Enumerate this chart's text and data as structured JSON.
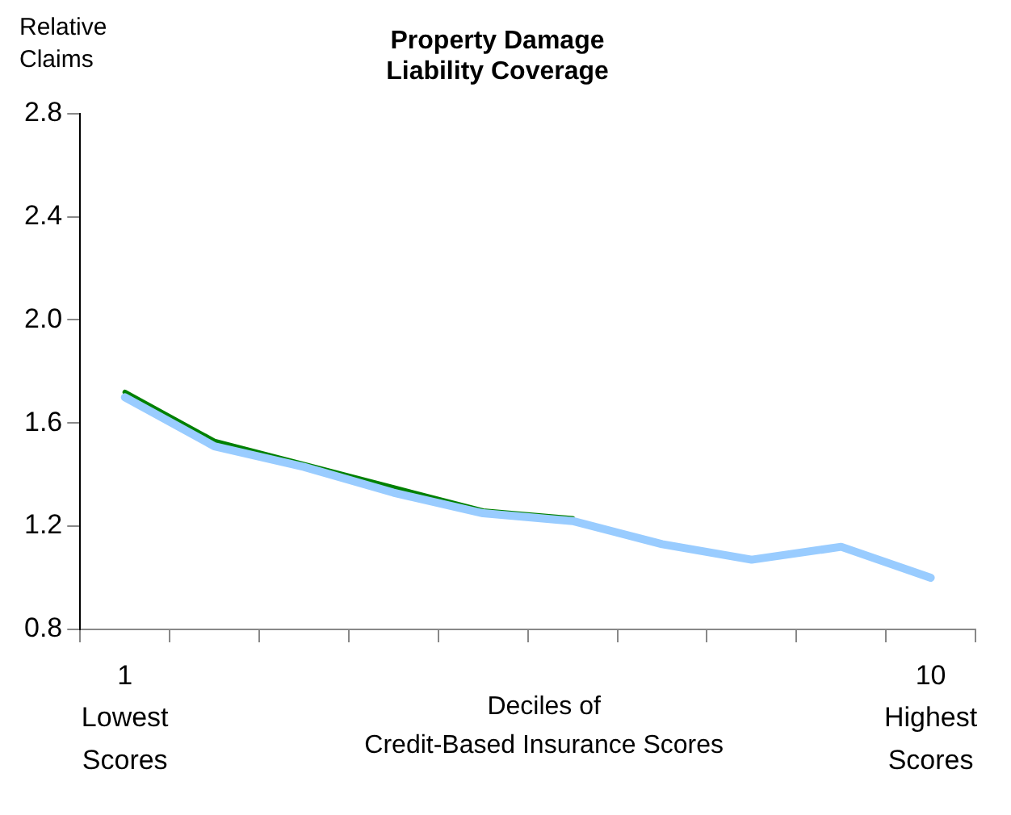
{
  "chart_data": {
    "type": "line",
    "title": "Property Damage\nLiability Coverage",
    "ylabel": "Relative\nClaims",
    "xlabel": "Deciles of\nCredit-Based Insurance Scores",
    "categories": [
      "1\nLowest\nScores",
      null,
      null,
      null,
      null,
      null,
      null,
      null,
      null,
      "10\nHighest\nScores"
    ],
    "series": [
      {
        "color": "#008000",
        "values": [
          1.72,
          1.53,
          1.44,
          1.35,
          1.26,
          1.23,
          null,
          null,
          null,
          null
        ]
      },
      {
        "color": "#99ccff",
        "values": [
          1.7,
          1.51,
          1.43,
          1.33,
          1.25,
          1.22,
          1.13,
          1.07,
          1.12,
          1.0
        ]
      }
    ],
    "ylim": [
      0.8,
      2.8
    ],
    "yticks": [
      {
        "value": 0.8,
        "label": "0.8"
      },
      {
        "value": 1.2,
        "label": "1.2"
      },
      {
        "value": 1.6,
        "label": "1.6"
      },
      {
        "value": 2,
        "label": "2.0"
      },
      {
        "value": 2.4,
        "label": "2.4"
      },
      {
        "value": 2.8,
        "label": "2.8"
      }
    ],
    "grid": false,
    "legend": false,
    "marker": "none",
    "line_style": "solid"
  }
}
